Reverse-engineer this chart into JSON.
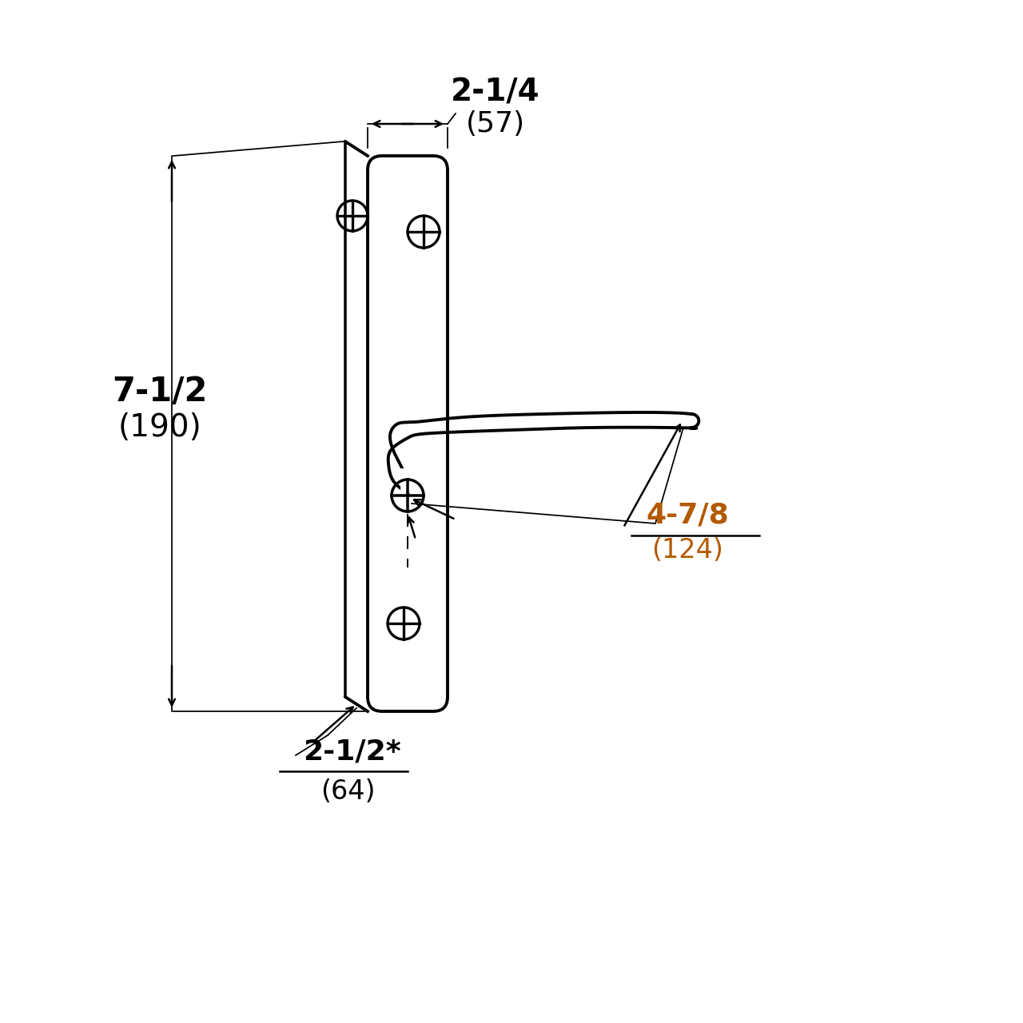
{
  "bg_color": "#ffffff",
  "line_color": "#000000",
  "orange_color": "#b35a00",
  "dim_width_label": "2-1/4",
  "dim_width_sub": "(57)",
  "dim_height_label": "7-1/2",
  "dim_height_sub": "(190)",
  "dim_lever_label": "4-7/8",
  "dim_lever_sub": "(124)",
  "dim_bottom_label": "2-1/2*",
  "dim_bottom_sub": "(64)"
}
